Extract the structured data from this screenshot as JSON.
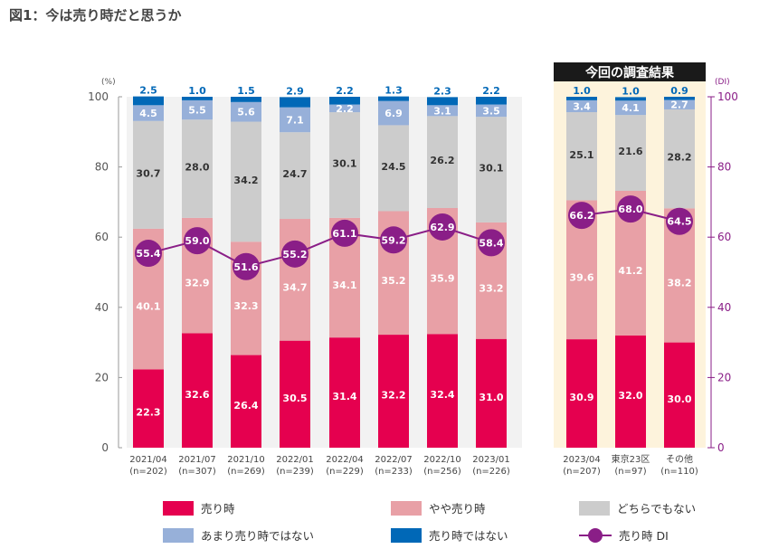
{
  "figure_title": "図1：今は売り時だと思うか",
  "colors": {
    "urido": "#e5004f",
    "yaya": "#e8a0a6",
    "dochira": "#cccccc",
    "amari": "#97b0d9",
    "nai": "#0068b7",
    "di": "#8a1e87",
    "highlight_bg": "#fdf3dc",
    "plot_bg": "#f2f2f2"
  },
  "chart_data": {
    "type": "bar",
    "stacked": true,
    "categories": [
      {
        "line1": "2021/04",
        "line2": "(n=202)"
      },
      {
        "line1": "2021/07",
        "line2": "(n=307)"
      },
      {
        "line1": "2021/10",
        "line2": "(n=269)"
      },
      {
        "line1": "2022/01",
        "line2": "(n=239)"
      },
      {
        "line1": "2022/04",
        "line2": "(n=229)"
      },
      {
        "line1": "2022/07",
        "line2": "(n=233)"
      },
      {
        "line1": "2022/10",
        "line2": "(n=256)"
      },
      {
        "line1": "2023/01",
        "line2": "(n=226)"
      },
      {
        "line1": "2023/04",
        "line2": "(n=207)"
      },
      {
        "line1": "東京23区",
        "line2": "(n=97)"
      },
      {
        "line1": "その他",
        "line2": "(n=110)"
      }
    ],
    "series": [
      {
        "name": "売り時",
        "color_key": "urido",
        "label_color": "#ffffff",
        "values": [
          "22.3",
          "32.6",
          "26.4",
          "30.5",
          "31.4",
          "32.2",
          "32.4",
          "31.0",
          "30.9",
          "32.0",
          "30.0"
        ]
      },
      {
        "name": "やや売り時",
        "color_key": "yaya",
        "label_color": "#ffffff",
        "values": [
          "40.1",
          "32.9",
          "32.3",
          "34.7",
          "34.1",
          "35.2",
          "35.9",
          "33.2",
          "39.6",
          "41.2",
          "38.2"
        ]
      },
      {
        "name": "どちらでもない",
        "color_key": "dochira",
        "label_color": "#333333",
        "values": [
          "30.7",
          "28.0",
          "34.2",
          "24.7",
          "30.1",
          "24.5",
          "26.2",
          "30.1",
          "25.1",
          "21.6",
          "28.2"
        ]
      },
      {
        "name": "あまり売り時ではない",
        "color_key": "amari",
        "label_color": "#ffffff",
        "values": [
          "4.5",
          "5.5",
          "5.6",
          "7.1",
          "2.2",
          "6.9",
          "3.1",
          "3.5",
          "3.4",
          "4.1",
          "2.7"
        ]
      },
      {
        "name": "売り時ではない",
        "color_key": "nai",
        "label_color": "#0068b7",
        "values": [
          "2.5",
          "1.0",
          "1.5",
          "2.9",
          "2.2",
          "1.3",
          "2.3",
          "2.2",
          "1.0",
          "1.0",
          "0.9"
        ]
      }
    ],
    "di_series": {
      "name": "売り時 DI",
      "values": [
        "55.4",
        "59.0",
        "51.6",
        "55.2",
        "61.1",
        "59.2",
        "62.9",
        "58.4",
        "66.2",
        "68.0",
        "64.5"
      ]
    },
    "left_axis": {
      "unit": "(%)",
      "ticks": [
        "0",
        "20",
        "40",
        "60",
        "80",
        "100"
      ],
      "ylim": [
        0,
        100
      ]
    },
    "right_axis": {
      "unit": "(DI)",
      "ticks": [
        "0",
        "20",
        "40",
        "60",
        "80",
        "100"
      ],
      "ylim": [
        0,
        100
      ]
    },
    "highlight": {
      "label": "今回の調査結果",
      "start_index": 8
    },
    "legend": {
      "placement": "bottom"
    }
  }
}
